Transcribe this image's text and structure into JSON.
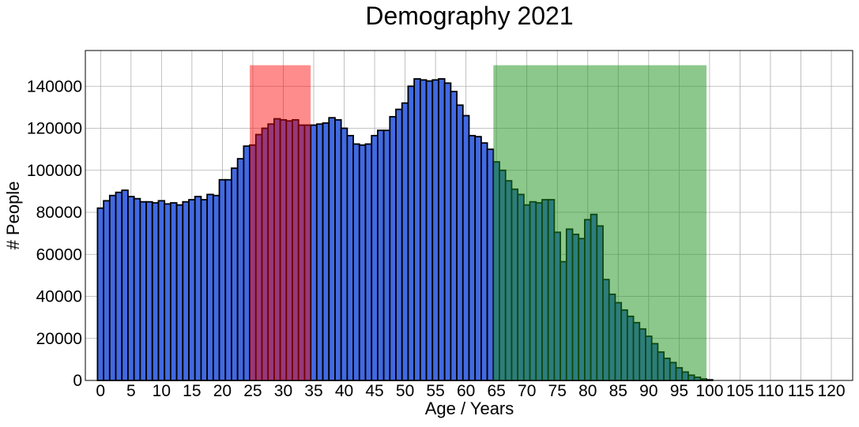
{
  "chart_data": {
    "type": "bar",
    "title": "Demography 2021",
    "xlabel": "Age / Years",
    "ylabel": "# People",
    "xlim": [
      -2.5,
      123.5
    ],
    "ylim": [
      0,
      157000
    ],
    "xticks": [
      0,
      5,
      10,
      15,
      20,
      25,
      30,
      35,
      40,
      45,
      50,
      55,
      60,
      65,
      70,
      75,
      80,
      85,
      90,
      95,
      100,
      105,
      110,
      115,
      120
    ],
    "xtick_labels": [
      "0",
      "5",
      "10",
      "15",
      "20",
      "25",
      "30",
      "35",
      "40",
      "45",
      "50",
      "55",
      "60",
      "65",
      "70",
      "75",
      "80",
      "85",
      "90",
      "95",
      "100",
      "105",
      "110",
      "115",
      "120"
    ],
    "yticks": [
      0,
      20000,
      40000,
      60000,
      80000,
      100000,
      120000,
      140000
    ],
    "ytick_labels": [
      "0",
      "20000",
      "40000",
      "60000",
      "80000",
      "100000",
      "120000",
      "140000"
    ],
    "grid": true,
    "bar_color": "#4169e1",
    "bar_edge_color": "#000000",
    "ages": [
      0,
      1,
      2,
      3,
      4,
      5,
      6,
      7,
      8,
      9,
      10,
      11,
      12,
      13,
      14,
      15,
      16,
      17,
      18,
      19,
      20,
      21,
      22,
      23,
      24,
      25,
      26,
      27,
      28,
      29,
      30,
      31,
      32,
      33,
      34,
      35,
      36,
      37,
      38,
      39,
      40,
      41,
      42,
      43,
      44,
      45,
      46,
      47,
      48,
      49,
      50,
      51,
      52,
      53,
      54,
      55,
      56,
      57,
      58,
      59,
      60,
      61,
      62,
      63,
      64,
      65,
      66,
      67,
      68,
      69,
      70,
      71,
      72,
      73,
      74,
      75,
      76,
      77,
      78,
      79,
      80,
      81,
      82,
      83,
      84,
      85,
      86,
      87,
      88,
      89,
      90,
      91,
      92,
      93,
      94,
      95,
      96,
      97,
      98,
      99,
      100,
      101,
      102,
      103,
      104,
      105,
      106,
      107,
      108,
      109,
      110,
      111,
      112,
      113,
      114,
      115,
      116,
      117,
      118,
      119
    ],
    "values": [
      82000,
      85500,
      88000,
      89500,
      90500,
      87500,
      86500,
      85000,
      85000,
      84500,
      85500,
      84000,
      84500,
      83500,
      85000,
      86000,
      87500,
      86000,
      88500,
      88000,
      95500,
      95500,
      101000,
      105500,
      111500,
      112000,
      117000,
      120000,
      122000,
      124500,
      124000,
      123500,
      124000,
      121500,
      121500,
      121500,
      122000,
      122500,
      125000,
      124000,
      120000,
      116500,
      112500,
      112000,
      112500,
      116500,
      119000,
      119000,
      125500,
      129000,
      132000,
      140000,
      143500,
      143000,
      142500,
      143000,
      143500,
      141500,
      137500,
      131000,
      126000,
      116500,
      116000,
      113000,
      110000,
      104000,
      100000,
      95000,
      91000,
      88500,
      83500,
      85000,
      84500,
      86000,
      86000,
      70500,
      56500,
      72000,
      69500,
      67500,
      76500,
      79000,
      73500,
      48000,
      41000,
      37000,
      33500,
      30500,
      27500,
      24500,
      21000,
      17500,
      13500,
      10500,
      8500,
      6000,
      4000,
      2500,
      1500,
      700,
      300,
      0,
      0,
      0,
      0,
      0,
      0,
      0,
      0,
      0,
      0,
      0,
      0,
      0,
      0,
      0,
      0,
      0,
      0,
      0
    ],
    "highlights": [
      {
        "start": 25,
        "end": 35,
        "top": 150000,
        "color": "#ff0000",
        "alpha": 0.45
      },
      {
        "start": 65,
        "end": 100,
        "top": 150000,
        "color": "#1a911a",
        "alpha": 0.5
      }
    ]
  }
}
